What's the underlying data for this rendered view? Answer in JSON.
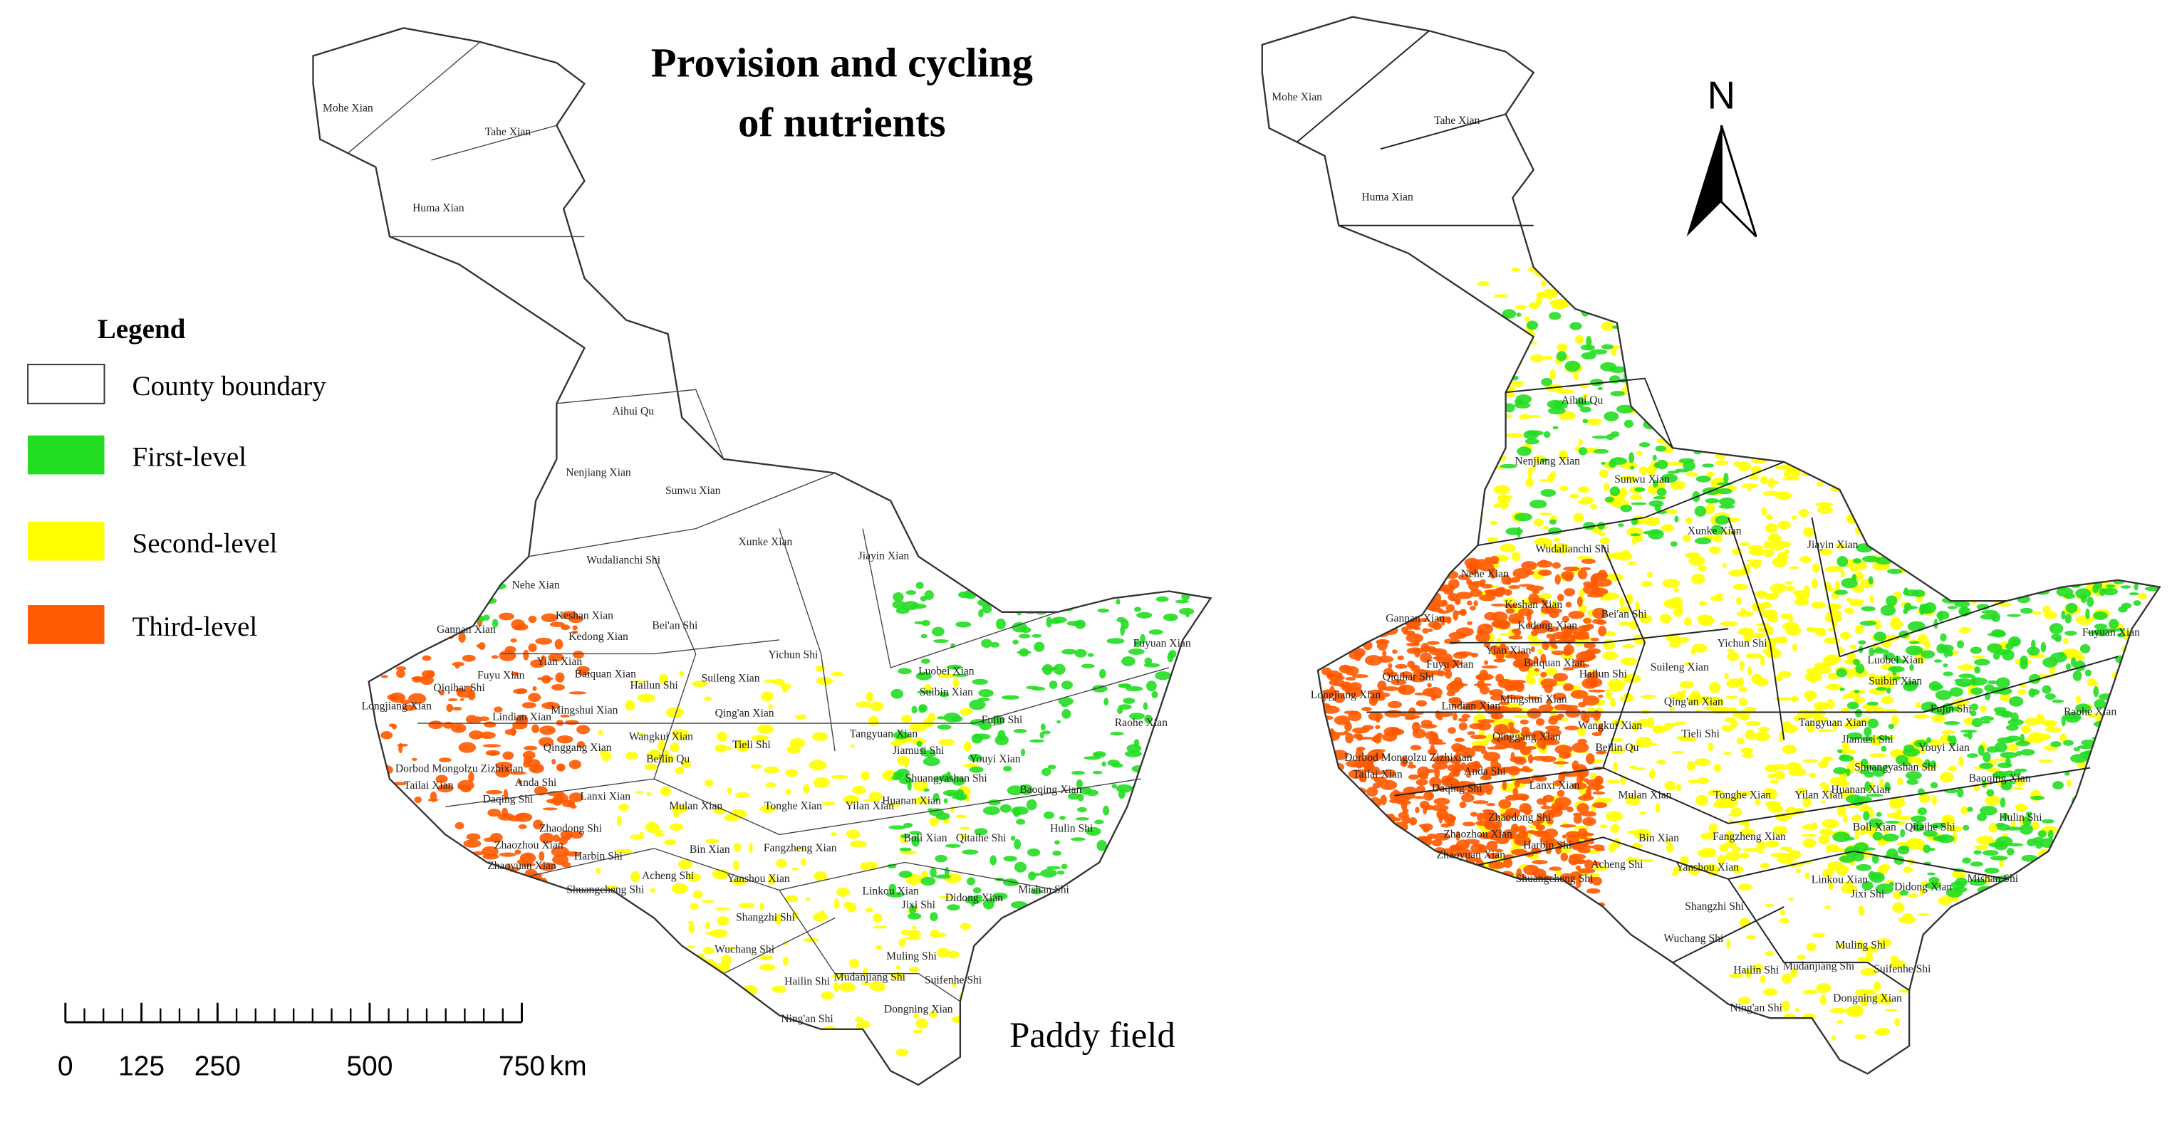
{
  "title": [
    "Provision and cycling",
    "of nutrients"
  ],
  "legend": {
    "title": "Legend",
    "items": [
      {
        "label": "County boundary",
        "color": "#ffffff"
      },
      {
        "label": "First-level",
        "color": "#22dd22"
      },
      {
        "label": "Second-level",
        "color": "#ffff00"
      },
      {
        "label": "Third-level",
        "color": "#ff5a00"
      }
    ]
  },
  "scale_bar": {
    "ticks": [
      0,
      125,
      250,
      500,
      750
    ],
    "unit": "km"
  },
  "north_arrow": "N",
  "caption": "Paddy field",
  "county_labels": [
    "Mohe Xian",
    "Tahe Xian",
    "Huma Xian",
    "Aihui Qu",
    "Nenjiang Xian",
    "Sunwu Xian",
    "Wudalianchi Shi",
    "Xunke Xian",
    "Jiayin Xian",
    "Nehe Xian",
    "Keshan Xian",
    "Bei'an Shi",
    "Kedong Xian",
    "Yichun Shi",
    "Gannan Xian",
    "Yian Xian",
    "Fuyu Xian",
    "Baiquan Xian",
    "Hailun Shi",
    "Suileng Xian",
    "Luobei Xian",
    "Fuyuan Xian",
    "Qiqihar Shi",
    "Longjiang Xian",
    "Lindian Xian",
    "Mingshui Xian",
    "Qing'an Xian",
    "Suibin Xian",
    "Tieli Shi",
    "Qinggang Xian",
    "Wangkui Xian",
    "Beilin Qu",
    "Tangyuan Xian",
    "Jiamusi Shi",
    "Fujin Shi",
    "Raohe Xian",
    "Youyi Xian",
    "Dorbod Mongolzu Zizhixian",
    "Tailai Xian",
    "Anda Shi",
    "Daqing Shi",
    "Lanxi Xian",
    "Huanan Xian",
    "Shuangyashan Shi",
    "Baoqing Xian",
    "Mulan Xian",
    "Tonghe Xian",
    "Yilan Xian",
    "Zhaodong Shi",
    "Bin Xian",
    "Fangzheng Xian",
    "Boli Xian",
    "Qitaihe Shi",
    "Hulin Shi",
    "Zhaozhou Xian",
    "Harbin Shi",
    "Acheng Shi",
    "Zhaoyuan Xian",
    "Shuangcheng Shi",
    "Yanshou Xian",
    "Linkou Xian",
    "Jixi Shi",
    "Mishan Shi",
    "Didong Xian",
    "Shangzhi Shi",
    "Wuchang Shi",
    "Hailin Shi",
    "Mudanjiang Shi",
    "Muling Shi",
    "Suifenhe Shi",
    "Ning'an Shi",
    "Dongning Xian"
  ]
}
